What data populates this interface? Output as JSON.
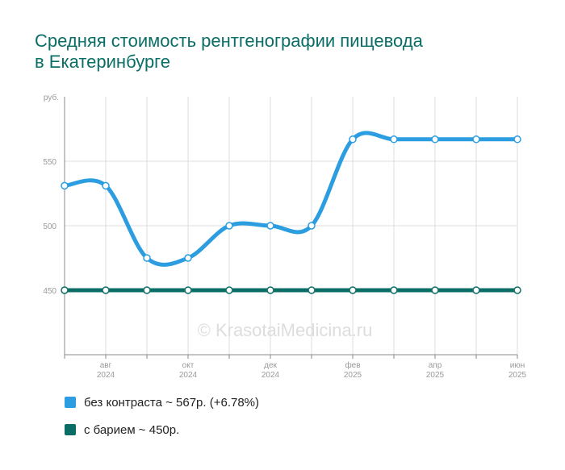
{
  "title_line1": "Средняя стоимость рентгенографии пищевода",
  "title_line2": "в Екатеринбурге",
  "watermark": "© KrasotaiMedicina.ru",
  "legend": [
    {
      "label": "без контраста ~ 567р. (+6.78%)",
      "color": "#2b9de0"
    },
    {
      "label": "с барием ~ 450р.",
      "color": "#0b6e66"
    }
  ],
  "chart_data": {
    "type": "line",
    "ylabel": "руб.",
    "ylim": [
      400,
      600
    ],
    "yticks": [
      450,
      500,
      550
    ],
    "grid": true,
    "x_tick_labels": [
      {
        "month": "авг",
        "year": "2024"
      },
      {
        "month": "окт",
        "year": "2024"
      },
      {
        "month": "дек",
        "year": "2024"
      },
      {
        "month": "фев",
        "year": "2025"
      },
      {
        "month": "апр",
        "year": "2025"
      },
      {
        "month": "июн",
        "year": "2025"
      }
    ],
    "x": [
      "2024-07",
      "2024-08",
      "2024-09",
      "2024-10",
      "2024-11",
      "2024-12",
      "2025-01",
      "2025-02",
      "2025-03",
      "2025-04",
      "2025-05",
      "2025-06"
    ],
    "series": [
      {
        "name": "без контраста",
        "color": "#2b9de0",
        "values": [
          531,
          531,
          475,
          475,
          500,
          500,
          500,
          567,
          567,
          567,
          567,
          567
        ]
      },
      {
        "name": "с барием",
        "color": "#0b6e66",
        "values": [
          450,
          450,
          450,
          450,
          450,
          450,
          450,
          450,
          450,
          450,
          450,
          450
        ]
      }
    ]
  }
}
